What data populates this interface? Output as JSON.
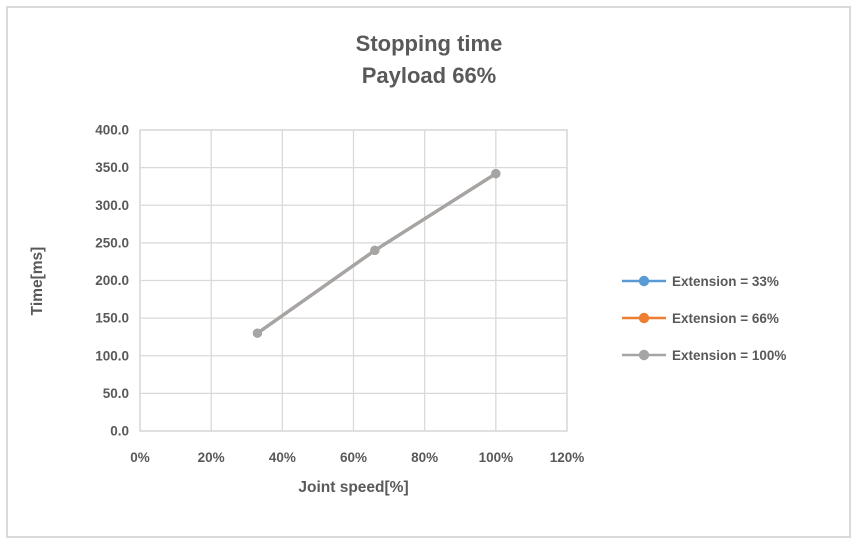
{
  "colors": {
    "text": "#595959",
    "gridline": "#d9d9d9",
    "frame_border": "#d9d9d9",
    "background": "#ffffff"
  },
  "chart_data": {
    "type": "line",
    "title": "Stopping time",
    "subtitle": "Payload 66%",
    "xlabel": "Joint speed[%]",
    "ylabel": "Time[ms]",
    "xlim": [
      0,
      120
    ],
    "ylim": [
      0,
      400
    ],
    "x_ticks": [
      0,
      20,
      40,
      60,
      80,
      100,
      120
    ],
    "x_tick_labels": [
      "0%",
      "20%",
      "40%",
      "60%",
      "80%",
      "100%",
      "120%"
    ],
    "y_ticks": [
      0,
      50,
      100,
      150,
      200,
      250,
      300,
      350,
      400
    ],
    "y_tick_labels": [
      "0.0",
      "50.0",
      "100.0",
      "150.0",
      "200.0",
      "250.0",
      "300.0",
      "350.0",
      "400.0"
    ],
    "grid": true,
    "legend_position": "right",
    "x": [
      33,
      66,
      100
    ],
    "series": [
      {
        "name": "Extension = 33%",
        "color": "#5B9BD5",
        "values": [
          130,
          240,
          342
        ]
      },
      {
        "name": "Extension = 66%",
        "color": "#ED7D31",
        "values": [
          130,
          240,
          342
        ]
      },
      {
        "name": "Extension = 100%",
        "color": "#A5A5A5",
        "values": [
          130,
          240,
          342
        ]
      }
    ],
    "note": "The three series coincide; only the gray (Extension = 100%) line is visible on top."
  }
}
